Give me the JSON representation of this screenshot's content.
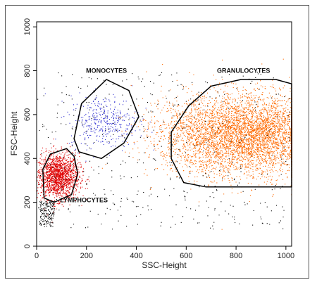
{
  "chart_data": {
    "type": "scatter",
    "xlabel": "SSC-Height",
    "ylabel": "FSC-Height",
    "xlim": [
      0,
      1023
    ],
    "ylim": [
      0,
      1023
    ],
    "xticks": [
      0,
      200,
      400,
      600,
      800,
      1000
    ],
    "yticks": [
      0,
      200,
      400,
      600,
      800,
      1000
    ],
    "colors": {
      "lymphocytes": "#e00000",
      "monocytes": "#2a2ad0",
      "granulocytes": "#ff6a00",
      "debris": "#000000",
      "gate": "#000000"
    },
    "populations": [
      {
        "name": "lymphocytes",
        "color": "#e00000",
        "count": 1700,
        "center": [
          85,
          320
        ],
        "spread": [
          42,
          52
        ]
      },
      {
        "name": "monocytes",
        "color": "#2a2ad0",
        "count": 380,
        "center": [
          270,
          570
        ],
        "spread": [
          70,
          60
        ]
      },
      {
        "name": "granulocytes",
        "color": "#ff6a00",
        "count": 5200,
        "center": [
          840,
          510
        ],
        "spread": [
          170,
          90
        ]
      },
      {
        "name": "debris",
        "color": "#000000",
        "count": 650,
        "center": [
          300,
          330
        ],
        "spread": [
          300,
          220
        ]
      }
    ],
    "gates": [
      {
        "name": "LYMPHOCYTES",
        "points": [
          [
            30,
            220
          ],
          [
            70,
            200
          ],
          [
            140,
            235
          ],
          [
            165,
            330
          ],
          [
            150,
            410
          ],
          [
            120,
            445
          ],
          [
            55,
            420
          ],
          [
            25,
            350
          ]
        ],
        "label_at": [
          190,
          200
        ]
      },
      {
        "name": "MONOCYTES",
        "points": [
          [
            150,
            490
          ],
          [
            180,
            650
          ],
          [
            280,
            760
          ],
          [
            370,
            710
          ],
          [
            410,
            590
          ],
          [
            350,
            470
          ],
          [
            260,
            400
          ],
          [
            170,
            430
          ]
        ],
        "label_at": [
          280,
          790
        ]
      },
      {
        "name": "GRANULOCYTES",
        "points": [
          [
            540,
            400
          ],
          [
            590,
            290
          ],
          [
            680,
            270
          ],
          [
            1023,
            270
          ],
          [
            1023,
            740
          ],
          [
            960,
            760
          ],
          [
            820,
            760
          ],
          [
            700,
            730
          ],
          [
            610,
            640
          ],
          [
            540,
            520
          ]
        ],
        "label_at": [
          830,
          790
        ]
      }
    ]
  }
}
